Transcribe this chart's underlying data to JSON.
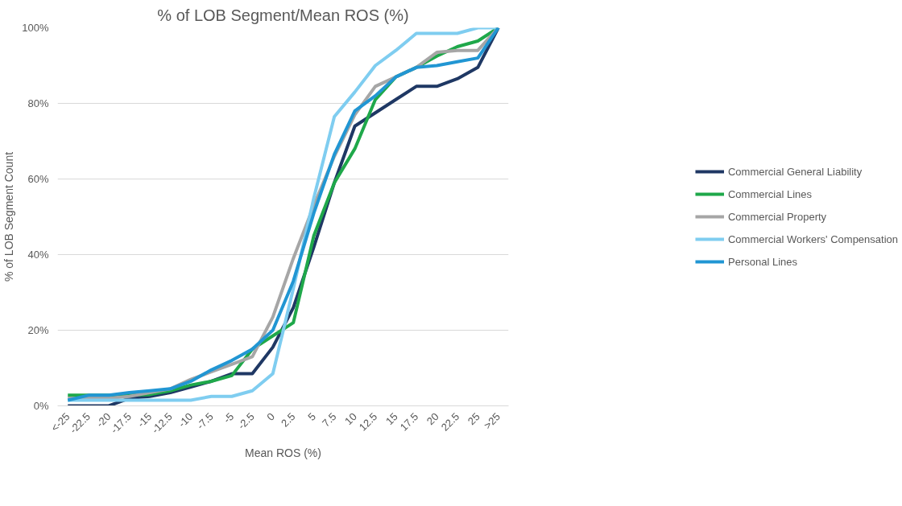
{
  "chart_data": {
    "type": "line",
    "title": "% of LOB Segment/Mean ROS (%)",
    "xlabel": "Mean ROS (%)",
    "ylabel": "% of LOB Segment Count",
    "categories": [
      "<-25",
      "-22.5",
      "-20",
      "-17.5",
      "-15",
      "-12.5",
      "-10",
      "-7.5",
      "-5",
      "-2.5",
      "0",
      "2.5",
      "5",
      "7.5",
      "10",
      "12.5",
      "15",
      "17.5",
      "20",
      "22.5",
      "25",
      ">25"
    ],
    "series": [
      {
        "name": "Commercial General Liability",
        "color": "#1f3864",
        "values": [
          0,
          0,
          0,
          2,
          2.5,
          3.5,
          5,
          6.5,
          8.5,
          8.5,
          15.5,
          26,
          42,
          59,
          74,
          77.5,
          81,
          84.5,
          84.5,
          86.5,
          89.5,
          100
        ]
      },
      {
        "name": "Commercial Lines",
        "color": "#1fa84a",
        "values": [
          2.8,
          2.8,
          2.8,
          2.8,
          3,
          4,
          5.5,
          6.5,
          8,
          15,
          18.5,
          22,
          45,
          59,
          68,
          81,
          87,
          89.5,
          92.5,
          95,
          96.5,
          100
        ]
      },
      {
        "name": "Commercial Property",
        "color": "#a6a6a6",
        "values": [
          2,
          2,
          2,
          2.5,
          3.5,
          4.5,
          7,
          9,
          11,
          13,
          23.5,
          39,
          53,
          66,
          77,
          84.5,
          87,
          89.5,
          93.5,
          94,
          94,
          100
        ]
      },
      {
        "name": "Commercial Workers' Compensation",
        "color": "#7fcdf0",
        "values": [
          1.5,
          1.5,
          1.5,
          1.5,
          1.5,
          1.5,
          1.5,
          2.5,
          2.5,
          4,
          8.5,
          31,
          55,
          76.5,
          83,
          90,
          94,
          98.5,
          98.5,
          98.5,
          100,
          100
        ]
      },
      {
        "name": "Personal Lines",
        "color": "#2196d3",
        "values": [
          1.5,
          2.8,
          2.8,
          3.5,
          4,
          4.5,
          6.5,
          9.5,
          12,
          15,
          20,
          33,
          51,
          66.5,
          78,
          82,
          87,
          89.5,
          90,
          91,
          92,
          100
        ]
      }
    ],
    "ylim": [
      0,
      100
    ],
    "yticks": [
      {
        "value": 0,
        "label": "0%"
      },
      {
        "value": 20,
        "label": "20%"
      },
      {
        "value": 40,
        "label": "40%"
      },
      {
        "value": 60,
        "label": "60%"
      },
      {
        "value": 80,
        "label": "80%"
      },
      {
        "value": 100,
        "label": "100%"
      }
    ],
    "grid": "y",
    "legend": "right",
    "line_style": "solid"
  }
}
